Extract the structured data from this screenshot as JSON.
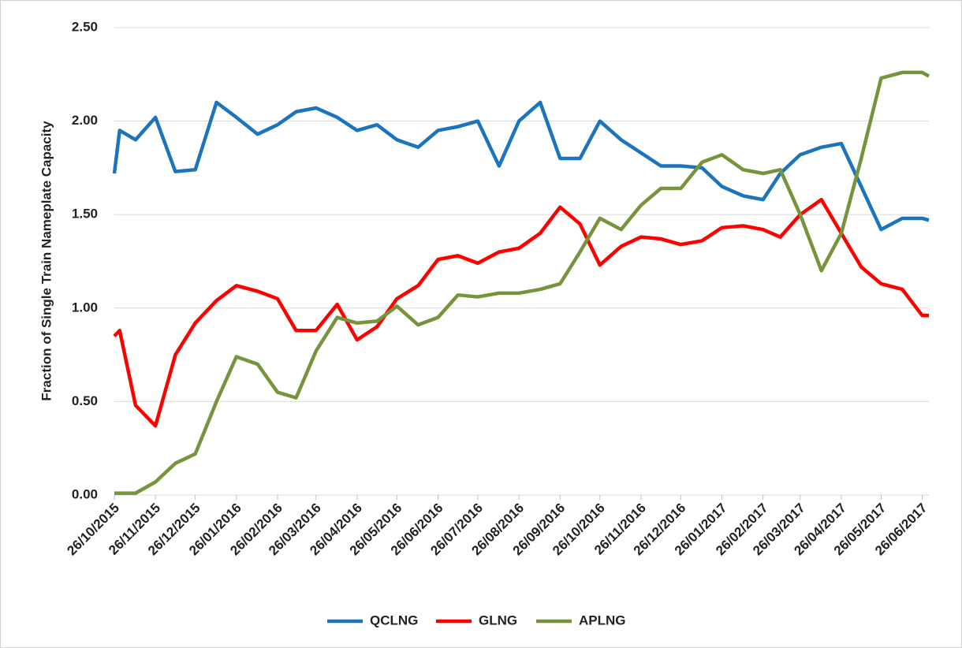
{
  "chart_data": {
    "type": "line",
    "y_label": "Fraction of Single Train  Nameplate Capacity",
    "x": [
      "26/10/2015",
      "30/10/2015",
      "11/11/2015",
      "26/11/2015",
      "11/12/2015",
      "26/12/2015",
      "11/01/2016",
      "26/01/2016",
      "11/02/2016",
      "26/02/2016",
      "11/03/2016",
      "26/03/2016",
      "11/04/2016",
      "26/04/2016",
      "11/05/2016",
      "26/05/2016",
      "11/06/2016",
      "26/06/2016",
      "11/07/2016",
      "26/07/2016",
      "11/08/2016",
      "26/08/2016",
      "11/09/2016",
      "26/09/2016",
      "11/10/2016",
      "26/10/2016",
      "11/11/2016",
      "26/11/2016",
      "11/12/2016",
      "26/12/2016",
      "11/01/2017",
      "26/01/2017",
      "11/02/2017",
      "26/02/2017",
      "11/03/2017",
      "26/03/2017",
      "11/04/2017",
      "26/04/2017",
      "11/05/2017",
      "26/05/2017",
      "11/06/2017",
      "26/06/2017",
      "01/07/2017"
    ],
    "series": [
      {
        "name": "QCLNG",
        "color": "#1c75bc",
        "values": [
          1.72,
          1.95,
          1.9,
          2.02,
          1.73,
          1.74,
          2.1,
          2.02,
          1.93,
          1.98,
          2.05,
          2.07,
          2.02,
          1.95,
          1.98,
          1.9,
          1.86,
          1.95,
          1.97,
          2.0,
          1.76,
          2.0,
          2.1,
          1.8,
          1.8,
          2.0,
          1.9,
          1.83,
          1.76,
          1.76,
          1.75,
          1.65,
          1.6,
          1.58,
          1.72,
          1.82,
          1.86,
          1.88,
          1.65,
          1.42,
          1.48,
          1.48,
          1.47
        ]
      },
      {
        "name": "GLNG",
        "color": "#ff0000",
        "values": [
          0.85,
          0.88,
          0.48,
          0.37,
          0.75,
          0.92,
          1.04,
          1.12,
          1.09,
          1.05,
          0.88,
          0.88,
          1.02,
          0.83,
          0.9,
          1.05,
          1.12,
          1.26,
          1.28,
          1.24,
          1.3,
          1.32,
          1.4,
          1.54,
          1.45,
          1.23,
          1.33,
          1.38,
          1.37,
          1.34,
          1.36,
          1.43,
          1.44,
          1.42,
          1.38,
          1.5,
          1.58,
          1.4,
          1.22,
          1.13,
          1.1,
          0.96,
          0.96
        ]
      },
      {
        "name": "APLNG",
        "color": "#77933c",
        "values": [
          0.01,
          0.01,
          0.01,
          0.07,
          0.17,
          0.22,
          0.5,
          0.74,
          0.7,
          0.55,
          0.52,
          0.77,
          0.95,
          0.92,
          0.93,
          1.01,
          0.91,
          0.95,
          1.07,
          1.06,
          1.08,
          1.08,
          1.1,
          1.13,
          1.3,
          1.48,
          1.42,
          1.55,
          1.64,
          1.64,
          1.78,
          1.82,
          1.74,
          1.72,
          1.74,
          1.5,
          1.2,
          1.4,
          1.8,
          2.23,
          2.26,
          2.26,
          2.24
        ]
      }
    ],
    "xlim": [
      "26/10/2015",
      "01/07/2017"
    ],
    "xticks": [
      "26/10/2015",
      "26/11/2015",
      "26/12/2015",
      "26/01/2016",
      "26/02/2016",
      "26/03/2016",
      "26/04/2016",
      "26/05/2016",
      "26/06/2016",
      "26/07/2016",
      "26/08/2016",
      "26/09/2016",
      "26/10/2016",
      "26/11/2016",
      "26/12/2016",
      "26/01/2017",
      "26/02/2017",
      "26/03/2017",
      "26/04/2017",
      "26/05/2017",
      "26/06/2017"
    ],
    "ylim": [
      0,
      2.5
    ],
    "yticks": [
      {
        "value": 0,
        "label": "0.00"
      },
      {
        "value": 0.5,
        "label": "0.50"
      },
      {
        "value": 1,
        "label": "1.00"
      },
      {
        "value": 1.5,
        "label": "1.50"
      },
      {
        "value": 2,
        "label": "2.00"
      },
      {
        "value": 2.5,
        "label": "2.50"
      }
    ],
    "grid": true,
    "legend": "bottom"
  }
}
